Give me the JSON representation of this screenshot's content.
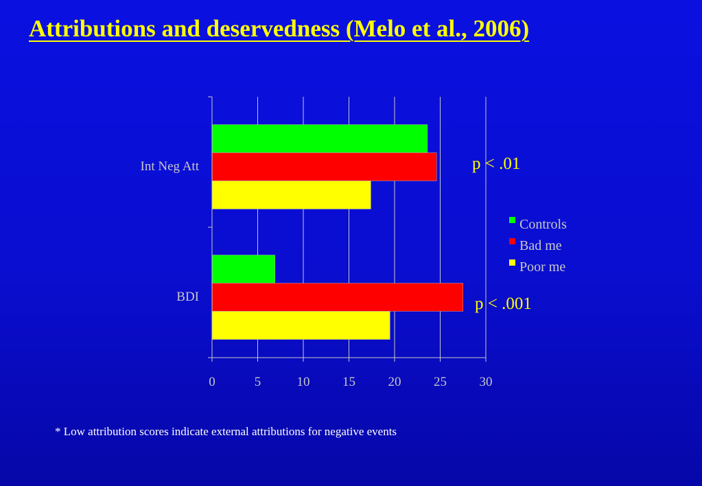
{
  "slide": {
    "title": "Attributions and deservedness (Melo et al., 2006)",
    "footnote": "* Low attribution scores indicate external attributions for negative events",
    "annotations": [
      "p < .01",
      "p < .001"
    ]
  },
  "colors": {
    "background": "#0a10e0",
    "title": "#ffff00",
    "annotation": "#ffff00",
    "axis_text": "#c8c8c8",
    "grid": "#c8c8c8"
  },
  "chart_data": {
    "type": "bar",
    "orientation": "horizontal",
    "categories": [
      "Int Neg Att",
      "BDI"
    ],
    "series": [
      {
        "name": "Controls",
        "color": "#00ff00",
        "values": [
          23.6,
          6.9
        ]
      },
      {
        "name": "Bad me",
        "color": "#ff0000",
        "values": [
          24.6,
          27.5
        ]
      },
      {
        "name": "Poor me",
        "color": "#ffff00",
        "values": [
          17.4,
          19.5
        ]
      }
    ],
    "xlim": [
      0,
      30
    ],
    "x_ticks": [
      "0",
      "5",
      "10",
      "15",
      "20",
      "25",
      "30"
    ],
    "grid": true,
    "legend_position": "right"
  }
}
